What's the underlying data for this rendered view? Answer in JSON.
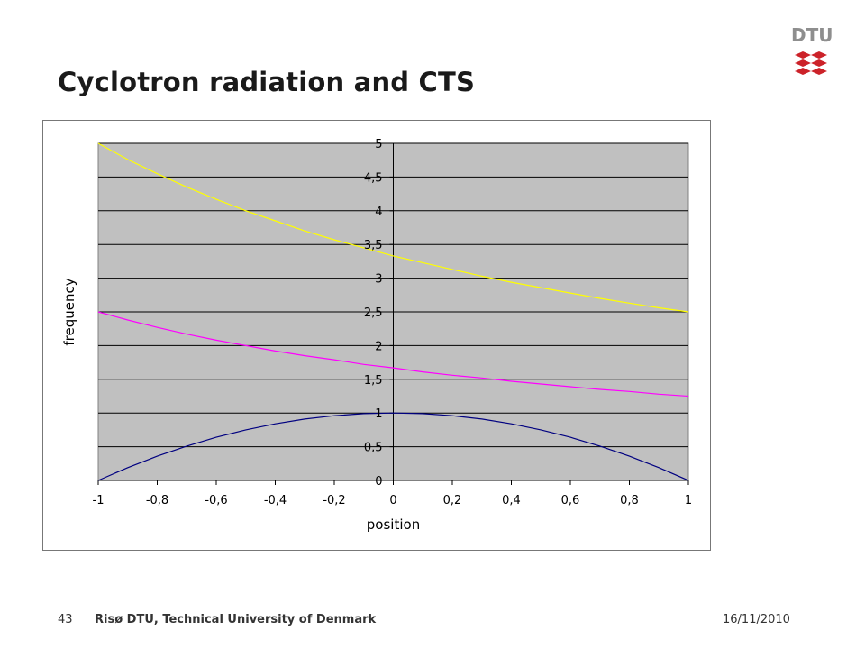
{
  "slide": {
    "title": "Cyclotron radiation and CTS",
    "logo_text": "DTU",
    "footer_page": "43",
    "footer_org": "Risø DTU, Technical University of Denmark",
    "footer_date": "16/11/2010"
  },
  "colors": {
    "plot_background": "#c0c0c0",
    "logo_red": "#cc2229",
    "series_yellow": "#ffff00",
    "series_magenta": "#ff00ff",
    "series_blue": "#000080"
  },
  "chart_data": {
    "type": "line",
    "title": "",
    "xlabel": "position",
    "ylabel": "frequency",
    "xlim": [
      -1,
      1
    ],
    "ylim": [
      0,
      5
    ],
    "grid": true,
    "x_ticks": [
      "-1",
      "-0,8",
      "-0,6",
      "-0,4",
      "-0,2",
      "0",
      "0,2",
      "0,4",
      "0,6",
      "0,8",
      "1"
    ],
    "y_ticks": [
      "0",
      "0,5",
      "1",
      "1,5",
      "2",
      "2,5",
      "3",
      "3,5",
      "4",
      "4,5",
      "5"
    ],
    "x": [
      -1,
      -0.9,
      -0.8,
      -0.7,
      -0.6,
      -0.5,
      -0.4,
      -0.3,
      -0.2,
      -0.1,
      0,
      0.1,
      0.2,
      0.3,
      0.4,
      0.5,
      0.6,
      0.7,
      0.8,
      0.9,
      1
    ],
    "series": [
      {
        "color": "#ffff00",
        "values": [
          5.0,
          4.76,
          4.55,
          4.35,
          4.17,
          4.0,
          3.85,
          3.7,
          3.57,
          3.45,
          3.33,
          3.23,
          3.13,
          3.03,
          2.94,
          2.86,
          2.78,
          2.7,
          2.63,
          2.56,
          2.5
        ]
      },
      {
        "color": "#ff00ff",
        "values": [
          2.5,
          2.38,
          2.27,
          2.17,
          2.08,
          2.0,
          1.92,
          1.85,
          1.79,
          1.72,
          1.67,
          1.61,
          1.56,
          1.52,
          1.47,
          1.43,
          1.39,
          1.35,
          1.32,
          1.28,
          1.25
        ]
      },
      {
        "color": "#000080",
        "values": [
          0.0,
          0.19,
          0.36,
          0.51,
          0.64,
          0.75,
          0.84,
          0.91,
          0.96,
          0.99,
          1.0,
          0.99,
          0.96,
          0.91,
          0.84,
          0.75,
          0.64,
          0.51,
          0.36,
          0.19,
          0.0
        ]
      }
    ]
  }
}
